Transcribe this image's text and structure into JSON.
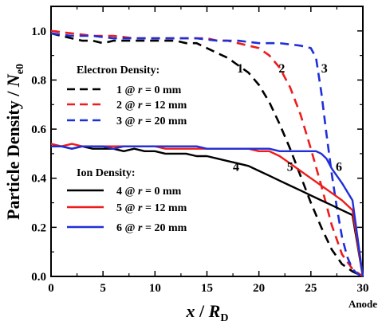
{
  "chart_data": {
    "type": "line",
    "xlabel_main": "x",
    "xlabel_sep": " / ",
    "xlabel_var": "R",
    "xlabel_sub": "D",
    "ylabel_main": "Particle Density / ",
    "ylabel_var": "N",
    "ylabel_sub": "e0",
    "xlim": [
      0,
      30
    ],
    "ylim": [
      0.0,
      1.1
    ],
    "xticks": [
      "0",
      "5",
      "10",
      "15",
      "20",
      "25",
      "30"
    ],
    "yticks": [
      "0.0",
      "0.2",
      "0.4",
      "0.6",
      "0.8",
      "1.0"
    ],
    "anode_label": "Anode",
    "legends": [
      {
        "title": "Electron Density:",
        "entries": [
          {
            "id": "1",
            "r_prefix": "@ ",
            "r_var": "r",
            "r_value": " =   0 mm",
            "color": "#000000",
            "dash": true
          },
          {
            "id": "2",
            "r_prefix": "@ ",
            "r_var": "r",
            "r_value": " = 12 mm",
            "color": "#ee1c1c",
            "dash": true
          },
          {
            "id": "3",
            "r_prefix": "@ ",
            "r_var": "r",
            "r_value": " = 20 mm",
            "color": "#1f2fd8",
            "dash": true
          }
        ]
      },
      {
        "title": "Ion Density:",
        "entries": [
          {
            "id": "4",
            "r_prefix": "@ ",
            "r_var": "r",
            "r_value": " =   0 mm",
            "color": "#000000",
            "dash": false
          },
          {
            "id": "5",
            "r_prefix": "@ ",
            "r_var": "r",
            "r_value": " = 12 mm",
            "color": "#ee1c1c",
            "dash": false
          },
          {
            "id": "6",
            "r_prefix": "@ ",
            "r_var": "r",
            "r_value": " = 20 mm",
            "color": "#1f2fd8",
            "dash": false
          }
        ]
      }
    ],
    "series": [
      {
        "id": "1",
        "color": "#000000",
        "dash": true,
        "label_at": [
          18.2,
          0.83
        ],
        "x": [
          0,
          1,
          2,
          3,
          4,
          5,
          6,
          7,
          8,
          9,
          10,
          11,
          12,
          13,
          14,
          15,
          16,
          17,
          18,
          19,
          20,
          21,
          22,
          23,
          24,
          25,
          26,
          27,
          28,
          29,
          30
        ],
        "y": [
          0.99,
          0.98,
          0.97,
          0.96,
          0.96,
          0.95,
          0.96,
          0.96,
          0.96,
          0.96,
          0.96,
          0.96,
          0.96,
          0.95,
          0.95,
          0.93,
          0.91,
          0.89,
          0.86,
          0.83,
          0.78,
          0.71,
          0.62,
          0.52,
          0.41,
          0.3,
          0.2,
          0.11,
          0.05,
          0.02,
          0.0
        ]
      },
      {
        "id": "2",
        "color": "#ee1c1c",
        "dash": true,
        "label_at": [
          22.2,
          0.83
        ],
        "x": [
          0,
          2,
          4,
          6,
          8,
          10,
          12,
          14,
          15,
          16,
          17,
          18,
          19,
          20,
          21,
          22,
          23,
          24,
          25,
          26,
          27,
          28,
          29,
          30
        ],
        "y": [
          1.0,
          0.99,
          0.98,
          0.98,
          0.97,
          0.97,
          0.97,
          0.97,
          0.97,
          0.96,
          0.96,
          0.95,
          0.94,
          0.93,
          0.9,
          0.85,
          0.77,
          0.66,
          0.52,
          0.37,
          0.21,
          0.09,
          0.03,
          0.0
        ]
      },
      {
        "id": "3",
        "color": "#1f2fd8",
        "dash": true,
        "label_at": [
          26.3,
          0.83
        ],
        "x": [
          0,
          2,
          4,
          6,
          8,
          10,
          12,
          14,
          16,
          18,
          20,
          22,
          24,
          25,
          25.5,
          26,
          26.5,
          27,
          27.5,
          28,
          28.5,
          29,
          29.5,
          30
        ],
        "y": [
          0.99,
          0.98,
          0.98,
          0.97,
          0.97,
          0.97,
          0.97,
          0.97,
          0.96,
          0.96,
          0.95,
          0.95,
          0.94,
          0.93,
          0.89,
          0.75,
          0.58,
          0.42,
          0.28,
          0.16,
          0.08,
          0.03,
          0.01,
          0.0
        ]
      },
      {
        "id": "4",
        "color": "#000000",
        "dash": false,
        "label_at": [
          17.8,
          0.43
        ],
        "x": [
          0,
          1,
          2,
          3,
          4,
          5,
          6,
          7,
          8,
          9,
          10,
          11,
          12,
          13,
          14,
          15,
          16,
          17,
          18,
          19,
          20,
          21,
          22,
          23,
          24,
          25,
          26,
          27,
          28,
          29,
          30
        ],
        "y": [
          0.53,
          0.53,
          0.52,
          0.53,
          0.52,
          0.52,
          0.52,
          0.51,
          0.52,
          0.51,
          0.51,
          0.5,
          0.5,
          0.5,
          0.49,
          0.49,
          0.48,
          0.47,
          0.46,
          0.45,
          0.43,
          0.41,
          0.39,
          0.37,
          0.35,
          0.33,
          0.31,
          0.29,
          0.27,
          0.25,
          0.0
        ]
      },
      {
        "id": "5",
        "color": "#ee1c1c",
        "dash": false,
        "label_at": [
          23.0,
          0.43
        ],
        "x": [
          0,
          1,
          2,
          3,
          4,
          5,
          6,
          7,
          8,
          9,
          10,
          11,
          12,
          13,
          14,
          15,
          16,
          17,
          18,
          19,
          20,
          21,
          22,
          23,
          24,
          25,
          26,
          27,
          28,
          29,
          30
        ],
        "y": [
          0.54,
          0.53,
          0.54,
          0.53,
          0.53,
          0.53,
          0.53,
          0.53,
          0.53,
          0.53,
          0.53,
          0.52,
          0.52,
          0.52,
          0.52,
          0.52,
          0.52,
          0.52,
          0.52,
          0.52,
          0.51,
          0.51,
          0.49,
          0.46,
          0.43,
          0.4,
          0.37,
          0.34,
          0.31,
          0.27,
          0.0
        ]
      },
      {
        "id": "6",
        "color": "#1f2fd8",
        "dash": false,
        "label_at": [
          27.7,
          0.43
        ],
        "x": [
          0,
          1,
          2,
          3,
          4,
          5,
          6,
          7,
          8,
          9,
          10,
          11,
          12,
          13,
          14,
          15,
          16,
          17,
          18,
          19,
          20,
          21,
          22,
          23,
          24,
          25,
          25.5,
          26,
          26.5,
          27,
          28,
          29,
          30
        ],
        "y": [
          0.53,
          0.53,
          0.52,
          0.53,
          0.53,
          0.53,
          0.52,
          0.53,
          0.53,
          0.53,
          0.53,
          0.53,
          0.53,
          0.53,
          0.53,
          0.52,
          0.52,
          0.52,
          0.52,
          0.52,
          0.52,
          0.52,
          0.51,
          0.51,
          0.51,
          0.51,
          0.51,
          0.5,
          0.48,
          0.44,
          0.38,
          0.31,
          0.0
        ]
      }
    ]
  }
}
